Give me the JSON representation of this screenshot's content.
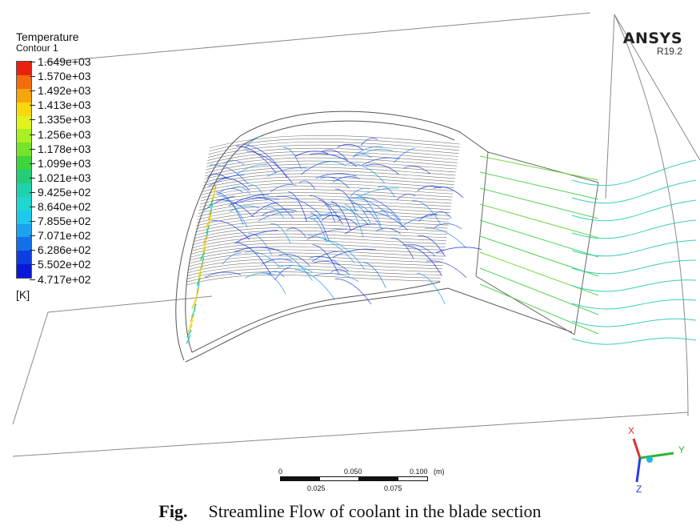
{
  "legend": {
    "title": "Temperature",
    "subtitle": "Contour 1",
    "unit": "[K]",
    "ticks": [
      "1.649e+03",
      "1.570e+03",
      "1.492e+03",
      "1.413e+03",
      "1.335e+03",
      "1.256e+03",
      "1.178e+03",
      "1.099e+03",
      "1.021e+03",
      "9.425e+02",
      "8.640e+02",
      "7.855e+02",
      "7.071e+02",
      "6.286e+02",
      "5.502e+02",
      "4.717e+02"
    ],
    "colors": [
      "#e8210f",
      "#f26b0c",
      "#f7a50a",
      "#f7d90b",
      "#dff51a",
      "#a9ef22",
      "#74e32a",
      "#3ed43c",
      "#24cc78",
      "#1fd2ad",
      "#1fd7d0",
      "#1dc9ea",
      "#1aa2ee",
      "#1470e8",
      "#0d3ee0",
      "#0818d6"
    ]
  },
  "brand": {
    "name": "ANSYS",
    "version": "R19.2"
  },
  "scale_bar": {
    "labels_top": [
      "0",
      "0.050",
      "0.100"
    ],
    "unit": "(m)",
    "labels_bottom": [
      "0.025",
      "0.075"
    ]
  },
  "axes": {
    "x": "X",
    "y": "Y",
    "z": "Z",
    "x_color": "#e03030",
    "y_color": "#2fb52f",
    "z_color": "#2a3fe0"
  },
  "caption": {
    "label": "Fig.",
    "text": "Streamline Flow of coolant in the blade section"
  }
}
